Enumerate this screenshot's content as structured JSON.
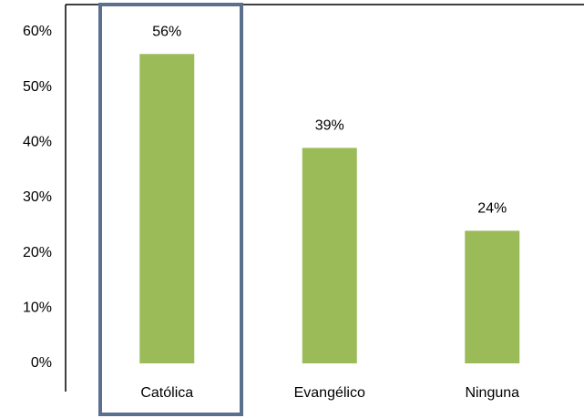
{
  "chart_data": {
    "type": "bar",
    "categories": [
      "Católica",
      "Evangélico",
      "Ninguna"
    ],
    "values": [
      56,
      39,
      24
    ],
    "value_labels": [
      "56%",
      "39%",
      "24%"
    ],
    "color": "#9bbb59",
    "ylim": [
      0,
      60
    ],
    "yticks": [
      {
        "value": 0,
        "label": "0%"
      },
      {
        "value": 10,
        "label": "10%"
      },
      {
        "value": 20,
        "label": "20%"
      },
      {
        "value": 30,
        "label": "30%"
      },
      {
        "value": 40,
        "label": "40%"
      },
      {
        "value": 50,
        "label": "50%"
      },
      {
        "value": 60,
        "label": "60%"
      }
    ],
    "grid": false
  }
}
